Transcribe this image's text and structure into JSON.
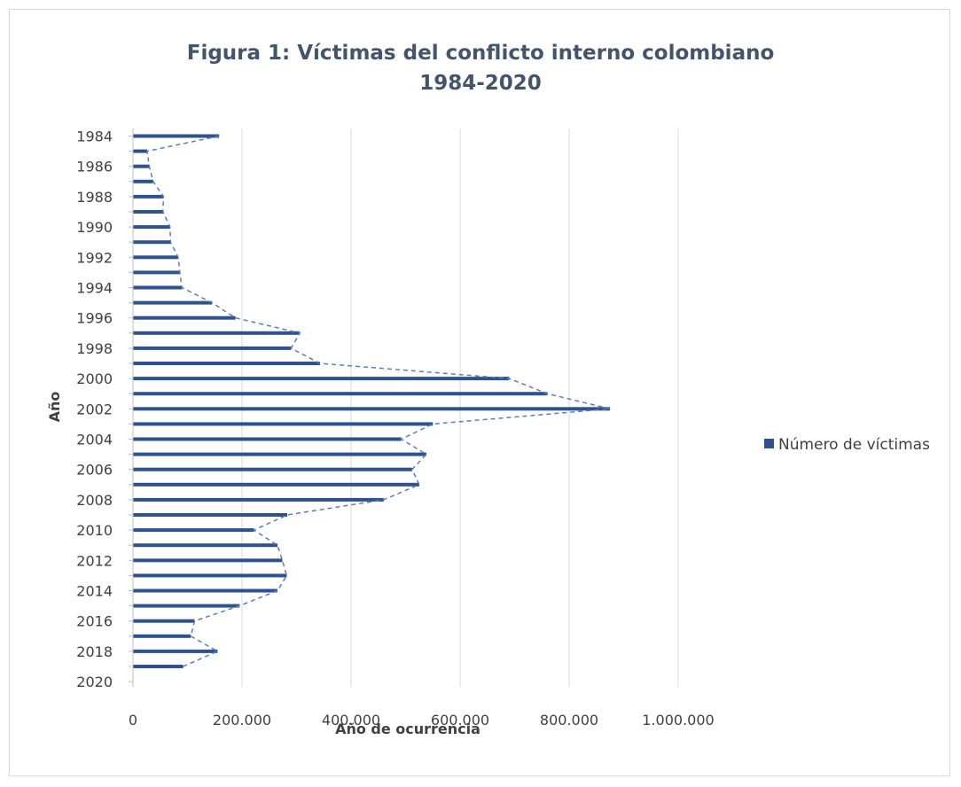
{
  "chart_data": {
    "type": "bar",
    "orientation": "horizontal",
    "title_line1": "Figura 1: Víctimas del conflicto interno colombiano",
    "title_line2": "1984-2020",
    "xlabel": "Año de ocurrencia",
    "ylabel": "Año",
    "xlim": [
      0,
      1000000
    ],
    "x_ticks": [
      0,
      200000,
      400000,
      600000,
      800000,
      1000000
    ],
    "x_tick_labels": [
      "0",
      "200.000",
      "400.000",
      "600.000",
      "800.000",
      "1.000.000"
    ],
    "y_tick_labels": [
      "1984",
      "1986",
      "1988",
      "1990",
      "1992",
      "1994",
      "1996",
      "1998",
      "2000",
      "2002",
      "2004",
      "2006",
      "2008",
      "2010",
      "2012",
      "2014",
      "2016",
      "2018",
      "2020"
    ],
    "grid": "vertical",
    "legend_position": "right",
    "categories": [
      1984,
      1985,
      1986,
      1987,
      1988,
      1989,
      1990,
      1991,
      1992,
      1993,
      1994,
      1995,
      1996,
      1997,
      1998,
      1999,
      2000,
      2001,
      2002,
      2003,
      2004,
      2005,
      2006,
      2007,
      2008,
      2009,
      2010,
      2011,
      2012,
      2013,
      2014,
      2015,
      2016,
      2017,
      2018,
      2019,
      2020
    ],
    "series": [
      {
        "name": "Número de víctimas",
        "color": "#2f528f",
        "values": [
          158000,
          26000,
          30000,
          37000,
          56000,
          55000,
          68000,
          69000,
          83000,
          86000,
          90000,
          145000,
          188000,
          306000,
          290000,
          343000,
          690000,
          760000,
          875000,
          550000,
          492000,
          538000,
          512000,
          525000,
          460000,
          283000,
          222000,
          265000,
          274000,
          282000,
          265000,
          195000,
          113000,
          106000,
          155000,
          92000,
          0
        ]
      }
    ]
  }
}
